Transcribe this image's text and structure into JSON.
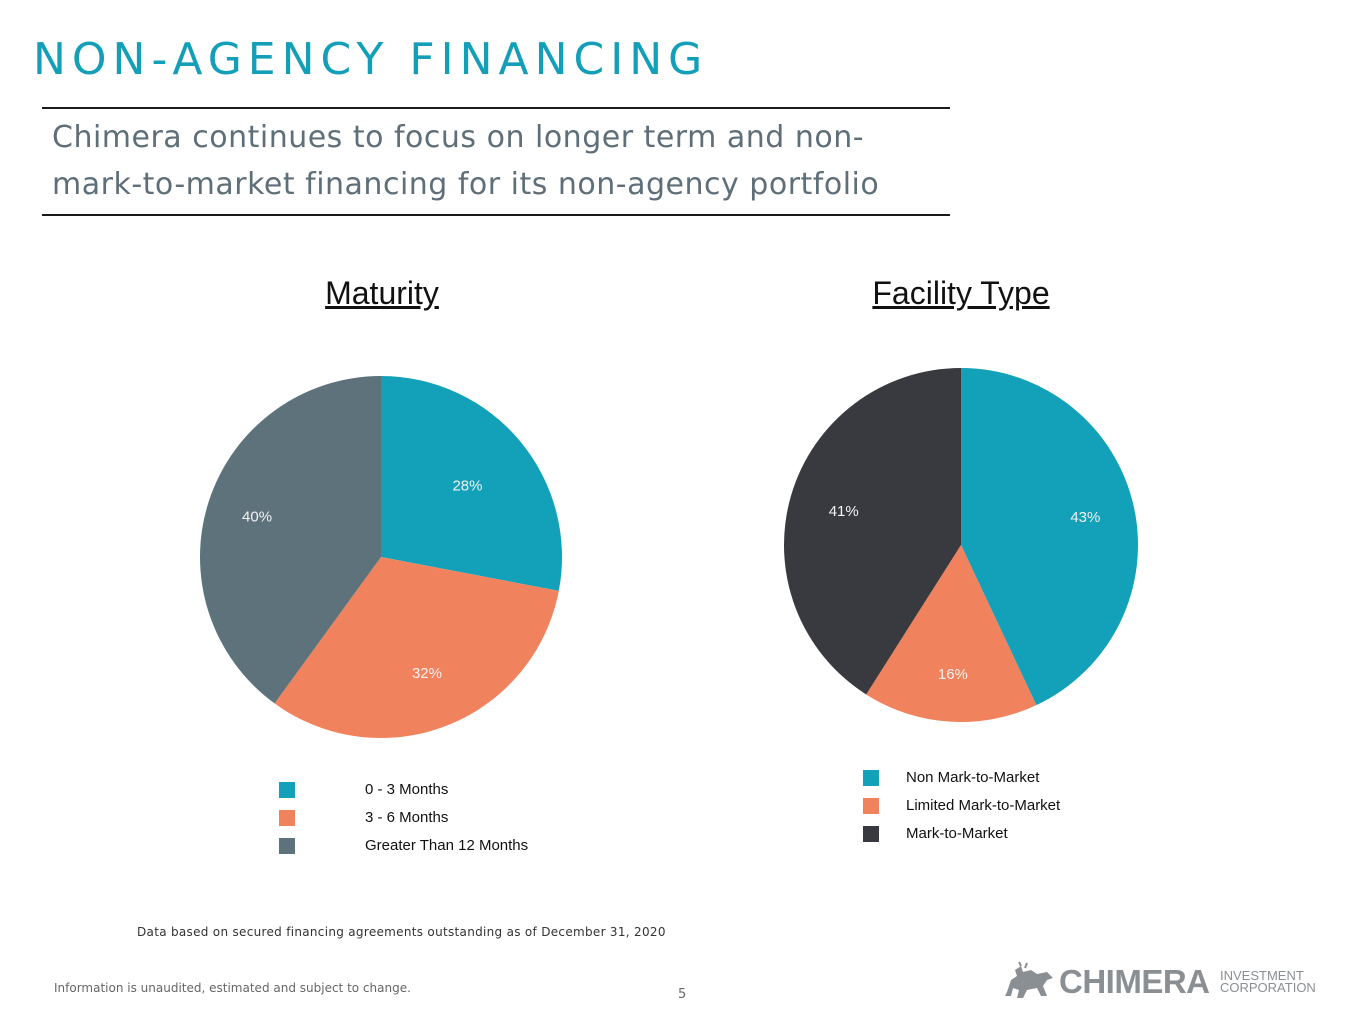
{
  "header": {
    "title": "NON-AGENCY FINANCING",
    "subtitle": "Chimera continues to focus on longer term and non-mark-to-market financing for its non-agency portfolio"
  },
  "chart_data": [
    {
      "type": "pie",
      "title": "Maturity",
      "categories": [
        "0 - 3 Months",
        "3 - 6 Months",
        "Greater Than 12 Months"
      ],
      "values": [
        28,
        32,
        40
      ],
      "labels": [
        "28%",
        "32%",
        "40%"
      ],
      "colors": [
        "#12a1b9",
        "#f0825e",
        "#5e727c"
      ],
      "legend_position": "bottom"
    },
    {
      "type": "pie",
      "title": "Facility Type",
      "categories": [
        "Non Mark-to-Market",
        "Limited Mark-to-Market",
        "Mark-to-Market"
      ],
      "values": [
        43,
        16,
        41
      ],
      "labels": [
        "43%",
        "16%",
        "41%"
      ],
      "colors": [
        "#12a1b9",
        "#f0825e",
        "#393a3f"
      ],
      "legend_position": "bottom"
    }
  ],
  "footer": {
    "footnote": "Data based on secured financing agreements outstanding as of December 31, 2020",
    "disclaimer": "Information is unaudited, estimated and subject to change.",
    "page_number": "5"
  },
  "logo": {
    "name": "CHIMERA",
    "line1": "INVESTMENT",
    "line2": "CORPORATION",
    "icon": "chimera-creature-icon"
  }
}
